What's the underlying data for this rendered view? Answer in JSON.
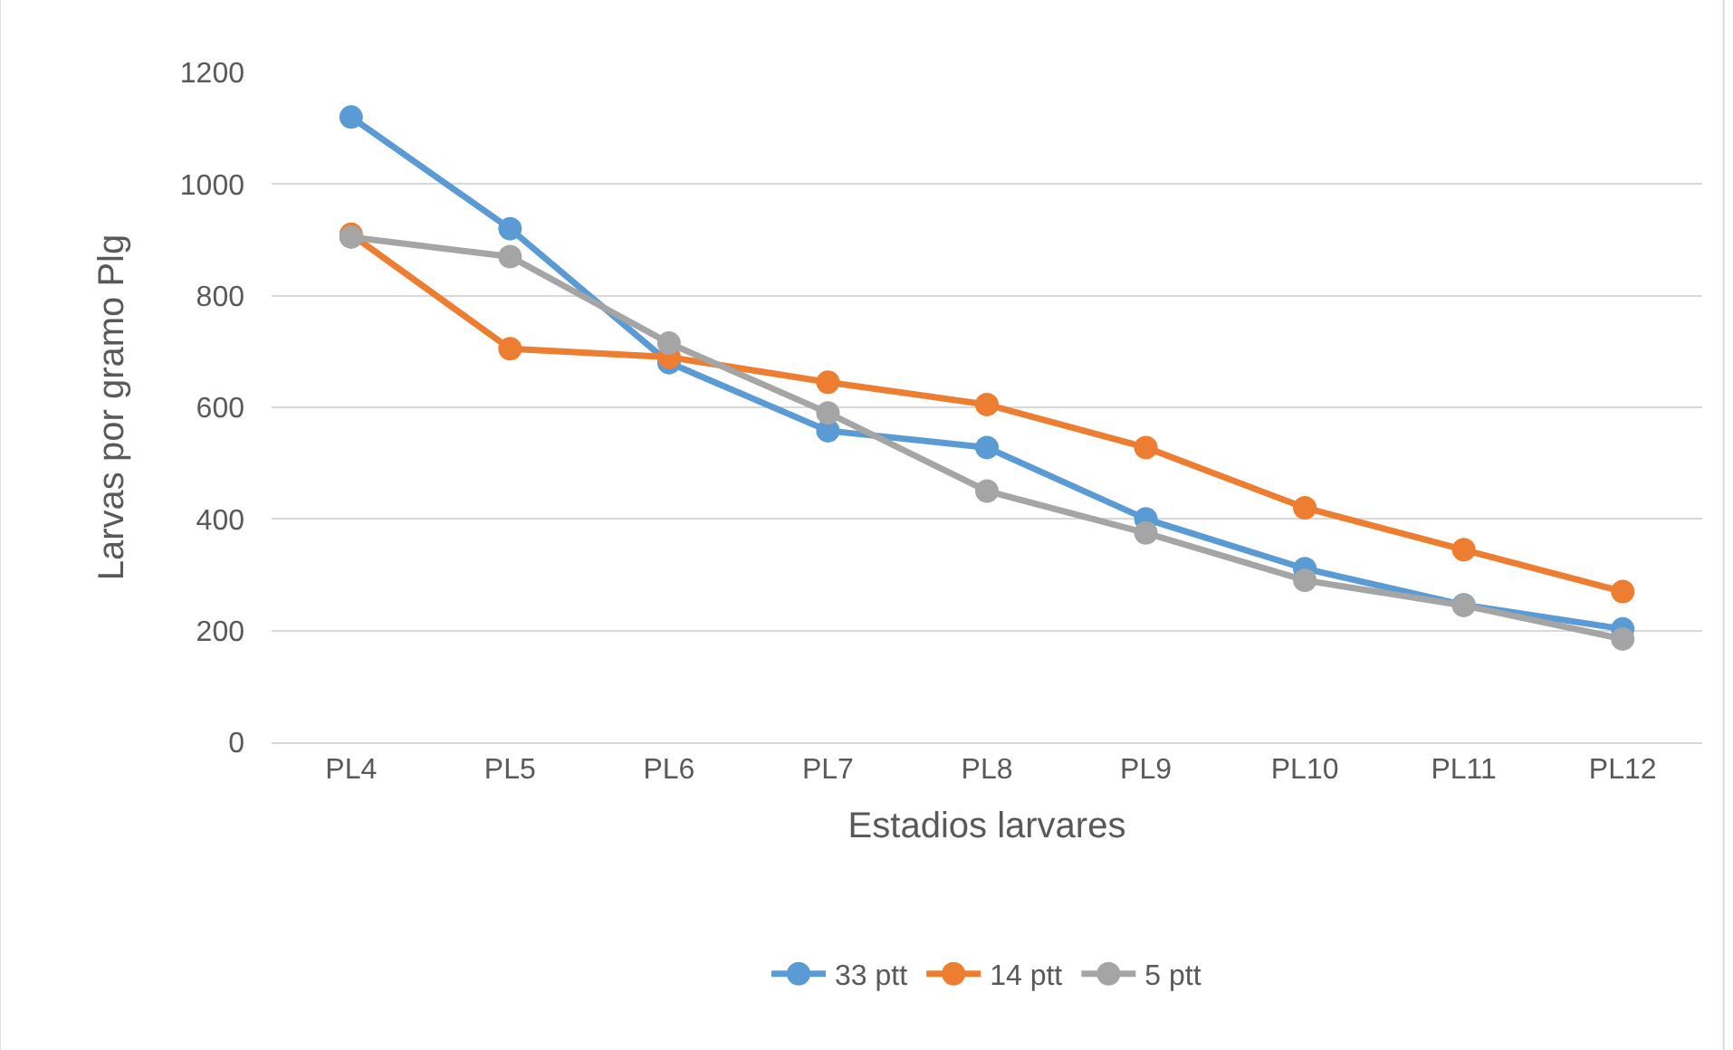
{
  "chart_data": {
    "type": "line",
    "xlabel": "Estadios larvares",
    "ylabel": "Larvas por gramo Plg",
    "categories": [
      "PL4",
      "PL5",
      "PL6",
      "PL7",
      "PL8",
      "PL9",
      "PL10",
      "PL11",
      "PL12"
    ],
    "series": [
      {
        "name": "33 ptt",
        "color": "#5b9bd5",
        "values": [
          1120,
          920,
          680,
          558,
          528,
          400,
          311,
          246,
          203
        ]
      },
      {
        "name": "14 ptt",
        "color": "#ed7d31",
        "values": [
          910,
          705,
          690,
          645,
          605,
          528,
          420,
          345,
          270
        ]
      },
      {
        "name": "5 ptt",
        "color": "#a5a5a5",
        "values": [
          905,
          870,
          715,
          590,
          450,
          375,
          290,
          245,
          185
        ]
      }
    ],
    "ylim": [
      0,
      1200
    ],
    "yticks": [
      0,
      200,
      400,
      600,
      800,
      1000,
      1200
    ],
    "grid": "y",
    "legend": "bottom",
    "marker": "circle",
    "line_style": "solid"
  }
}
